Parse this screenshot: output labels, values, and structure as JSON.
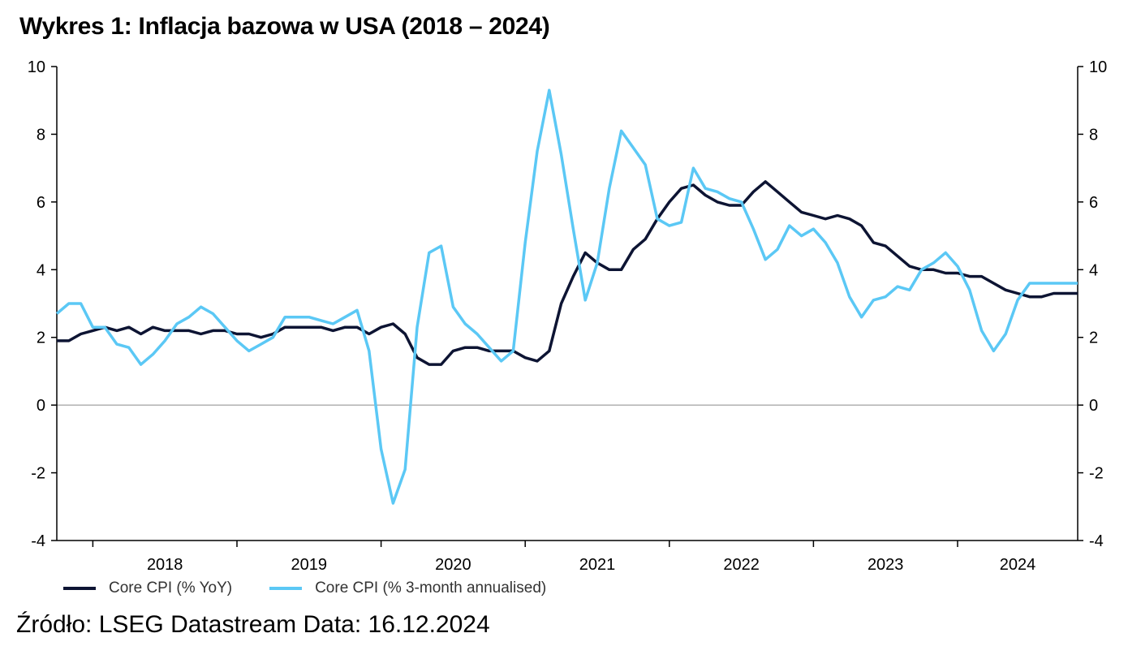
{
  "title": "Wykres 1: Inflacja bazowa w USA (2018 – 2024)",
  "source": "Źródło: LSEG Datastream Data: 16.12.2024",
  "colors": {
    "yoy": "#0d1433",
    "ann3m": "#5bc8f5",
    "zero_line": "#8a8a8a",
    "axis": "#000000"
  },
  "chart_data": {
    "type": "line",
    "grid": false,
    "legend_position": "bottom-left",
    "ylim": [
      -4,
      10
    ],
    "yticks": [
      -4,
      -2,
      0,
      2,
      4,
      6,
      8,
      10
    ],
    "ytick_labels": [
      "-4",
      "-2",
      "0",
      "2",
      "4",
      "6",
      "8",
      "10"
    ],
    "x_start": "2017-10",
    "x_end": "2024-11",
    "year_labels": [
      "2018",
      "2019",
      "2020",
      "2021",
      "2022",
      "2023",
      "2024"
    ],
    "x": [
      "2017-10",
      "2017-11",
      "2017-12",
      "2018-01",
      "2018-02",
      "2018-03",
      "2018-04",
      "2018-05",
      "2018-06",
      "2018-07",
      "2018-08",
      "2018-09",
      "2018-10",
      "2018-11",
      "2018-12",
      "2019-01",
      "2019-02",
      "2019-03",
      "2019-04",
      "2019-05",
      "2019-06",
      "2019-07",
      "2019-08",
      "2019-09",
      "2019-10",
      "2019-11",
      "2019-12",
      "2020-01",
      "2020-02",
      "2020-03",
      "2020-04",
      "2020-05",
      "2020-06",
      "2020-07",
      "2020-08",
      "2020-09",
      "2020-10",
      "2020-11",
      "2020-12",
      "2021-01",
      "2021-02",
      "2021-03",
      "2021-04",
      "2021-05",
      "2021-06",
      "2021-07",
      "2021-08",
      "2021-09",
      "2021-10",
      "2021-11",
      "2021-12",
      "2022-01",
      "2022-02",
      "2022-03",
      "2022-04",
      "2022-05",
      "2022-06",
      "2022-07",
      "2022-08",
      "2022-09",
      "2022-10",
      "2022-11",
      "2022-12",
      "2023-01",
      "2023-02",
      "2023-03",
      "2023-04",
      "2023-05",
      "2023-06",
      "2023-07",
      "2023-08",
      "2023-09",
      "2023-10",
      "2023-11",
      "2023-12",
      "2024-01",
      "2024-02",
      "2024-03",
      "2024-04",
      "2024-05",
      "2024-06",
      "2024-07",
      "2024-08",
      "2024-09",
      "2024-10",
      "2024-11"
    ],
    "series": [
      {
        "name": "Core CPI (% YoY)",
        "values": [
          1.9,
          1.9,
          2.1,
          2.2,
          2.3,
          2.2,
          2.3,
          2.1,
          2.3,
          2.2,
          2.2,
          2.2,
          2.1,
          2.2,
          2.2,
          2.1,
          2.1,
          2.0,
          2.1,
          2.3,
          2.3,
          2.3,
          2.3,
          2.2,
          2.3,
          2.3,
          2.1,
          2.3,
          2.4,
          2.1,
          1.4,
          1.2,
          1.2,
          1.6,
          1.7,
          1.7,
          1.6,
          1.6,
          1.6,
          1.4,
          1.3,
          1.6,
          3.0,
          3.8,
          4.5,
          4.2,
          4.0,
          4.0,
          4.6,
          4.9,
          5.5,
          6.0,
          6.4,
          6.5,
          6.2,
          6.0,
          5.9,
          5.9,
          6.3,
          6.6,
          6.3,
          6.0,
          5.7,
          5.6,
          5.5,
          5.6,
          5.5,
          5.3,
          4.8,
          4.7,
          4.4,
          4.1,
          4.0,
          4.0,
          3.9,
          3.9,
          3.8,
          3.8,
          3.6,
          3.4,
          3.3,
          3.2,
          3.2,
          3.3,
          3.3,
          3.3
        ]
      },
      {
        "name": "Core CPI (% 3-month annualised)",
        "values": [
          2.7,
          3.0,
          3.0,
          2.3,
          2.3,
          1.8,
          1.7,
          1.2,
          1.5,
          1.9,
          2.4,
          2.6,
          2.9,
          2.7,
          2.3,
          1.9,
          1.6,
          1.8,
          2.0,
          2.6,
          2.6,
          2.6,
          2.5,
          2.4,
          2.6,
          2.8,
          1.6,
          -1.3,
          -2.9,
          -1.9,
          2.3,
          4.5,
          4.7,
          2.9,
          2.4,
          2.1,
          1.7,
          1.3,
          1.6,
          4.8,
          7.5,
          9.3,
          7.4,
          5.2,
          3.1,
          4.2,
          6.4,
          8.1,
          7.6,
          7.1,
          5.5,
          5.3,
          5.4,
          7.0,
          6.4,
          6.3,
          6.1,
          6.0,
          5.2,
          4.3,
          4.6,
          5.3,
          5.0,
          5.2,
          4.8,
          4.2,
          3.2,
          2.6,
          3.1,
          3.2,
          3.5,
          3.4,
          4.0,
          4.2,
          4.5,
          4.1,
          3.4,
          2.2,
          1.6,
          2.1,
          3.1,
          3.6,
          3.6,
          3.6,
          3.6,
          3.6
        ]
      }
    ]
  }
}
